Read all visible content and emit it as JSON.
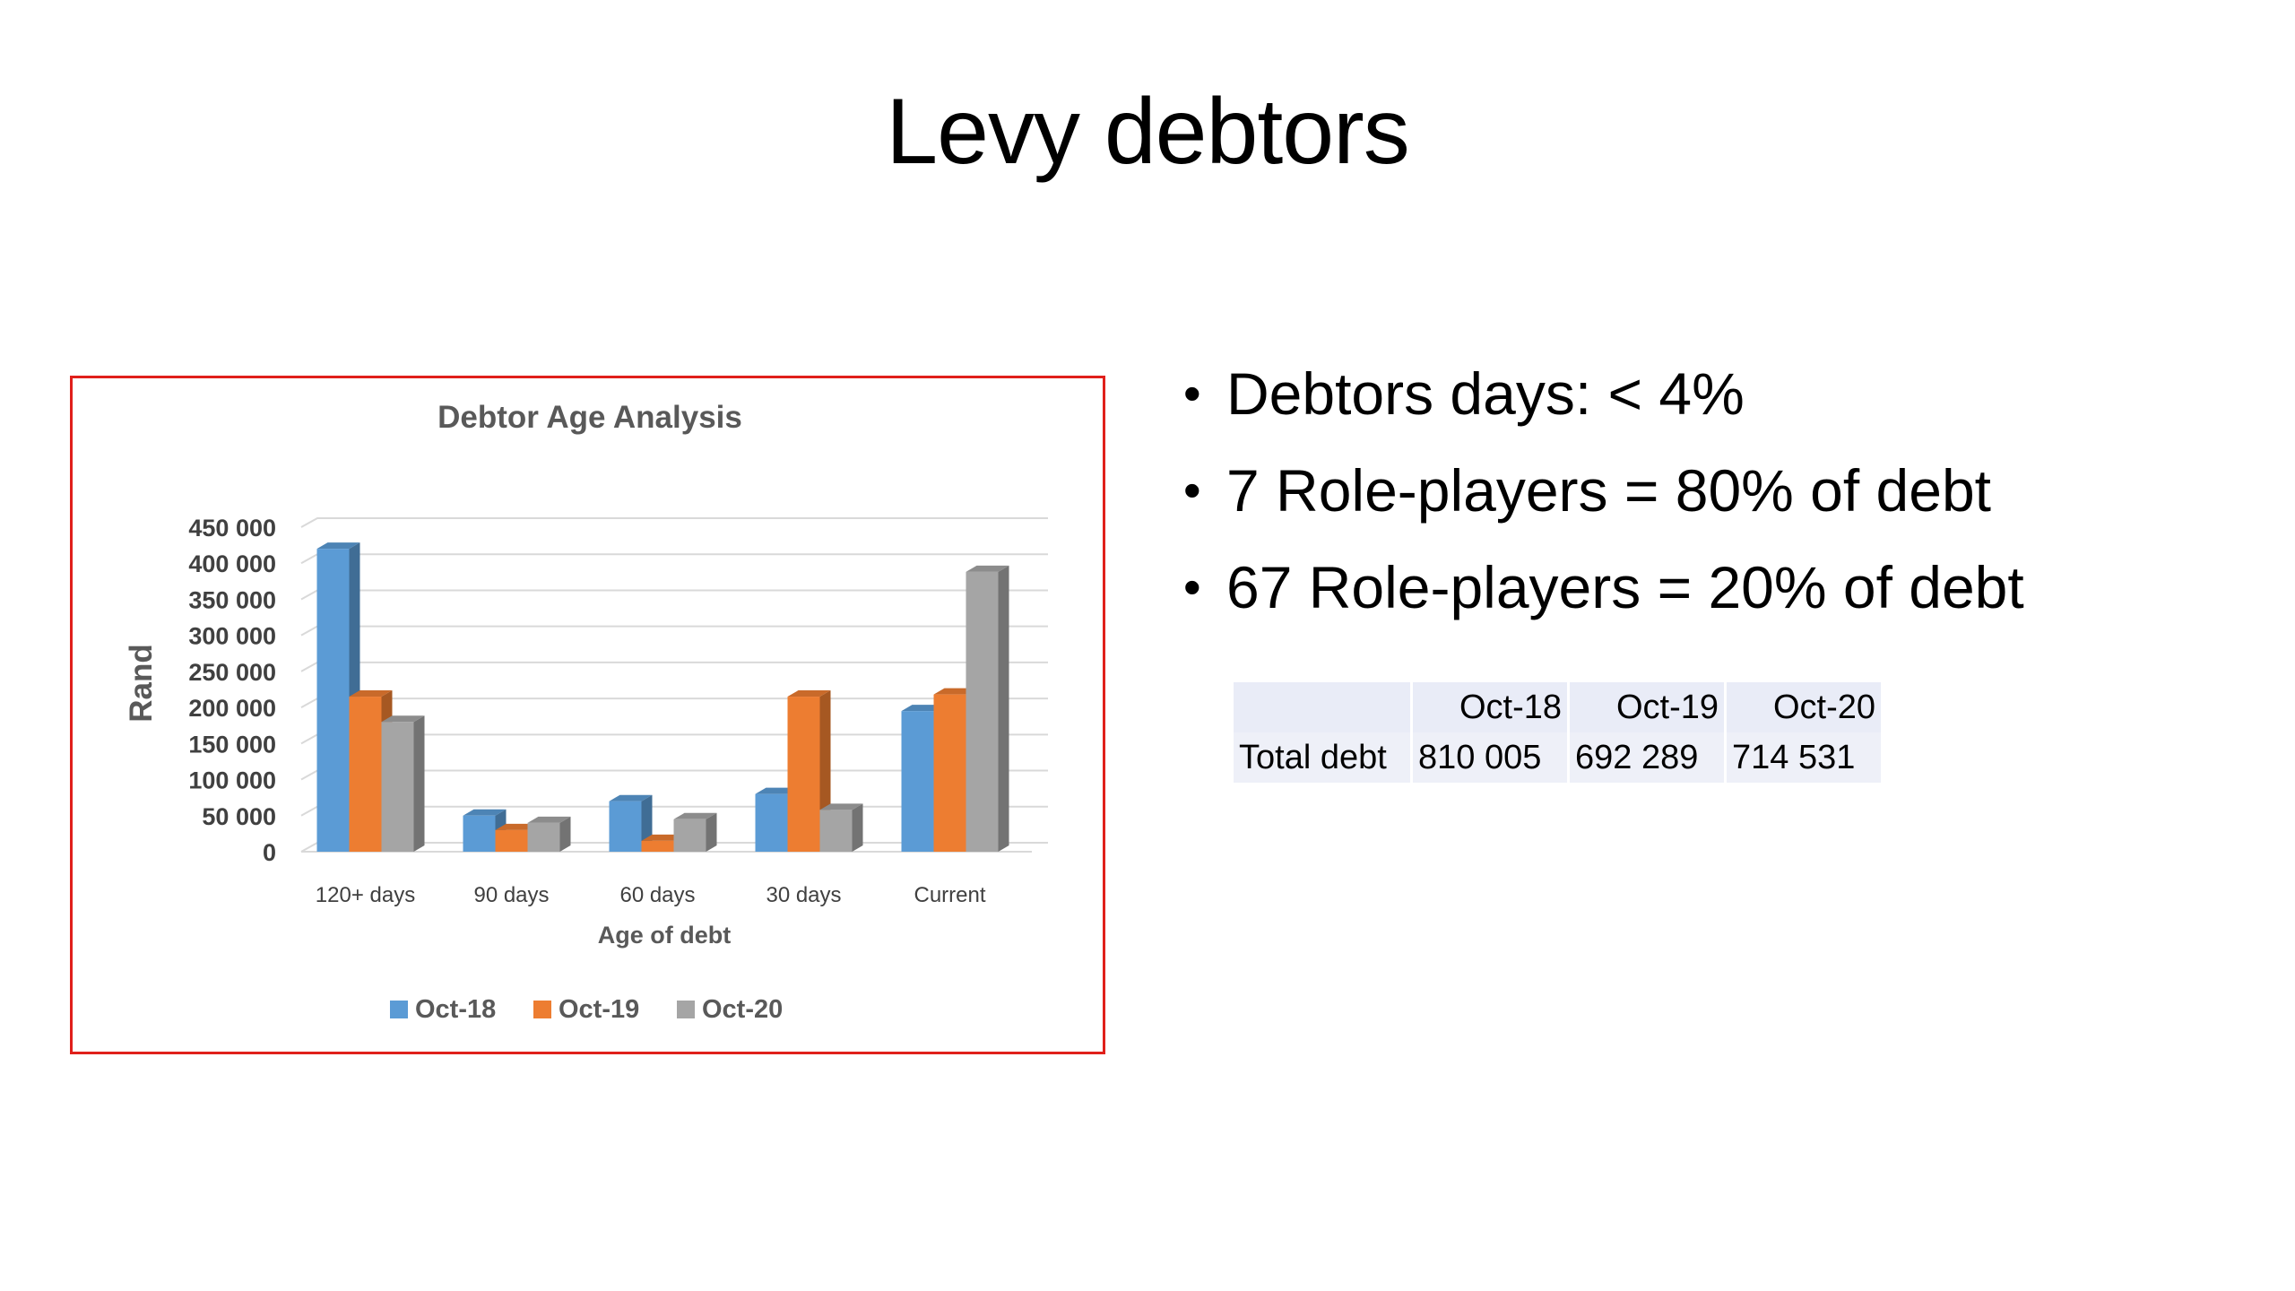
{
  "slide": {
    "title": "Levy debtors",
    "bullets": [
      "Debtors days: < 4%",
      "7 Role-players = 80% of debt",
      "67 Role-players = 20% of debt"
    ],
    "table": {
      "headers": [
        "",
        "Oct-18",
        "Oct-19",
        "Oct-20"
      ],
      "rows": [
        [
          "Total debt",
          "810 005",
          "692 289",
          "714 531"
        ]
      ]
    }
  },
  "chart_data": {
    "type": "bar",
    "title": "Debtor Age Analysis",
    "xlabel": "Age of debt",
    "ylabel": "Rand",
    "categories": [
      "120+ days",
      "90 days",
      "60 days",
      "30 days",
      "Current"
    ],
    "series": [
      {
        "name": "Oct-18",
        "color": "#5b9bd5",
        "values": [
          420000,
          50000,
          70000,
          80000,
          195000
        ]
      },
      {
        "name": "Oct-19",
        "color": "#ed7d31",
        "values": [
          215000,
          30000,
          15000,
          215000,
          218000
        ]
      },
      {
        "name": "Oct-20",
        "color": "#a5a5a5",
        "values": [
          180000,
          40000,
          45000,
          58000,
          388000
        ]
      }
    ],
    "ylim": [
      0,
      450000
    ],
    "yticks": [
      0,
      50000,
      100000,
      150000,
      200000,
      250000,
      300000,
      350000,
      400000,
      450000
    ],
    "ytick_labels": [
      "0",
      "50 000",
      "100 000",
      "150 000",
      "200 000",
      "250 000",
      "300 000",
      "350 000",
      "400 000",
      "450 000"
    ],
    "grid": true,
    "legend": "bottom",
    "style": "3d-column"
  }
}
